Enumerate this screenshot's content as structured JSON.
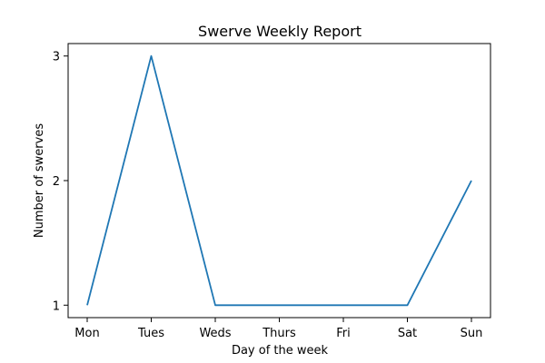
{
  "chart_data": {
    "type": "line",
    "title": "Swerve Weekly Report",
    "xlabel": "Day of the week",
    "ylabel": "Number of swerves",
    "categories": [
      "Mon",
      "Tues",
      "Weds",
      "Thurs",
      "Fri",
      "Sat",
      "Sun"
    ],
    "series": [
      {
        "values": [
          1,
          3,
          1,
          1,
          1,
          1,
          2
        ]
      }
    ],
    "ylim": [
      0.9,
      3.1
    ],
    "yticks": [
      1,
      2,
      3
    ],
    "grid": false,
    "line_color": "#1f77b4"
  }
}
